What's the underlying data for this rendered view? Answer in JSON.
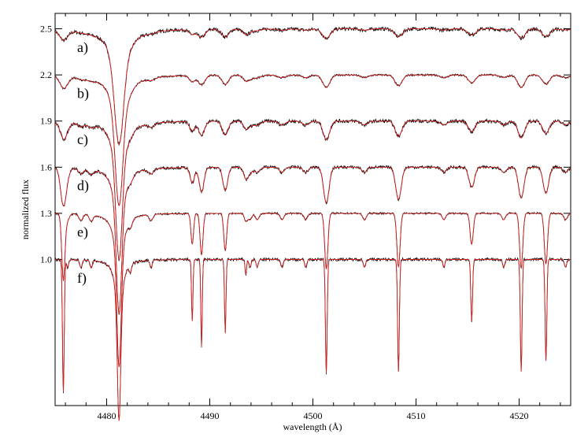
{
  "chart_data": {
    "type": "line",
    "xlabel": "wavelength (Å)",
    "ylabel": "normalized flux",
    "xlim": [
      4475,
      4525
    ],
    "ylim": [
      0.05,
      2.6
    ],
    "x_ticks": [
      4480,
      4490,
      4500,
      4510,
      4520
    ],
    "x_tick_labels": [
      "4480",
      "4490",
      "4500",
      "4510",
      "4520"
    ],
    "y_ticks": [
      1.0,
      1.3,
      1.6,
      1.9,
      2.2,
      2.5
    ],
    "y_tick_labels": [
      "1.0",
      "1.3",
      "1.6",
      "1.9",
      "2.2",
      "2.5"
    ],
    "colors": {
      "observed": "#000000",
      "model": "#d62020"
    },
    "panels": [
      {
        "label": "a)",
        "offset": 1.5,
        "line_depths": [
          0.75,
          0.03,
          0.05,
          0.03,
          0.05,
          0.06,
          0.05,
          0.04,
          0.06,
          0.05,
          0.06
        ],
        "line_widths": [
          0.6,
          0.45,
          0.5,
          0.45,
          0.5,
          0.55,
          0.55,
          0.55,
          0.55,
          0.55,
          0.55
        ],
        "noise": 0.012
      },
      {
        "label": "b)",
        "offset": 1.2,
        "line_depths": [
          0.85,
          0.04,
          0.06,
          0.03,
          0.06,
          0.08,
          0.07,
          0.05,
          0.08,
          0.06,
          0.07
        ],
        "line_widths": [
          0.5,
          0.4,
          0.45,
          0.4,
          0.45,
          0.5,
          0.5,
          0.5,
          0.5,
          0.5,
          0.5
        ],
        "noise": 0.006
      },
      {
        "label": "c)",
        "offset": 0.9,
        "line_depths": [
          0.9,
          0.06,
          0.09,
          0.04,
          0.09,
          0.12,
          0.1,
          0.07,
          0.11,
          0.08,
          0.1
        ],
        "line_widths": [
          0.42,
          0.35,
          0.4,
          0.35,
          0.4,
          0.45,
          0.45,
          0.45,
          0.45,
          0.45,
          0.45
        ],
        "noise": 0.012
      },
      {
        "label": "d)",
        "offset": 0.6,
        "line_depths": [
          0.95,
          0.1,
          0.16,
          0.07,
          0.15,
          0.23,
          0.21,
          0.13,
          0.2,
          0.17,
          0.24
        ],
        "line_widths": [
          0.35,
          0.3,
          0.33,
          0.3,
          0.33,
          0.38,
          0.38,
          0.38,
          0.38,
          0.38,
          0.38
        ],
        "noise": 0.01
      },
      {
        "label": "e)",
        "offset": 0.3,
        "line_depths": [
          1.0,
          0.2,
          0.27,
          0.05,
          0.24,
          0.36,
          0.35,
          0.2,
          0.36,
          0.33,
          0.43
        ],
        "line_widths": [
          0.28,
          0.18,
          0.2,
          0.2,
          0.2,
          0.22,
          0.22,
          0.22,
          0.22,
          0.22,
          0.22
        ],
        "noise": 0.006
      },
      {
        "label": "f)",
        "offset": 0.0,
        "line_depths": [
          1.05,
          0.4,
          0.57,
          0.1,
          0.48,
          0.74,
          0.73,
          0.4,
          0.73,
          0.66,
          0.86
        ],
        "line_widths": [
          0.22,
          0.1,
          0.1,
          0.1,
          0.1,
          0.12,
          0.12,
          0.12,
          0.12,
          0.12,
          0.12
        ],
        "noise": 0.01
      }
    ],
    "line_centers": [
      4481.2,
      4488.3,
      4489.2,
      4493.5,
      4491.5,
      4501.3,
      4508.3,
      4515.4,
      4520.2,
      4522.6,
      4475.8
    ],
    "weak_lines": [
      4476.2,
      4477.5,
      4478.5,
      4482.3,
      4484.3,
      4493.9,
      4494.6,
      4497.0,
      4499.3,
      4505.0,
      4512.7,
      4518.5,
      4524.5
    ],
    "weak_line_depth": 0.05
  }
}
